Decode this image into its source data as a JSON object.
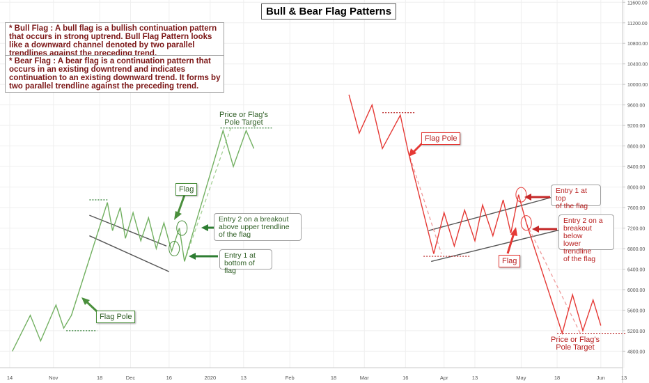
{
  "colors": {
    "bull": "#4a8f3c",
    "bull_line": "#72b061",
    "bear": "#e53935",
    "bear_dark": "#b71c1c",
    "note_text": "#7b1616",
    "channel": "#555555",
    "grid": "#efefef",
    "axis_text": "#555555"
  },
  "chart_data": {
    "type": "line",
    "title": "Bull & Bear Flag Patterns",
    "ylim": [
      4600,
      11600
    ],
    "y_ticks": [
      {
        "value": 4800,
        "label": "4800.00"
      },
      {
        "value": 5200,
        "label": "5200.00"
      },
      {
        "value": 5600,
        "label": "5600.00"
      },
      {
        "value": 6000,
        "label": "6000.00"
      },
      {
        "value": 6400,
        "label": "6400.00"
      },
      {
        "value": 6800,
        "label": "6800.00"
      },
      {
        "value": 7200,
        "label": "7200.00"
      },
      {
        "value": 7600,
        "label": "7600.00"
      },
      {
        "value": 8000,
        "label": "8000.00"
      },
      {
        "value": 8400,
        "label": "8400.00"
      },
      {
        "value": 8800,
        "label": "8800.00"
      },
      {
        "value": 9200,
        "label": "9200.00"
      },
      {
        "value": 9600,
        "label": "9600.00"
      },
      {
        "value": 10000,
        "label": "10000.00"
      },
      {
        "value": 10400,
        "label": "10400.00"
      },
      {
        "value": 10800,
        "label": "10800.00"
      },
      {
        "value": 11200,
        "label": "11200.00"
      },
      {
        "value": 11600,
        "label": "11600.00"
      }
    ],
    "x_ticks": [
      {
        "day": 14,
        "label": "14"
      },
      {
        "day": 31,
        "label": "Nov"
      },
      {
        "day": 49,
        "label": "18"
      },
      {
        "day": 61,
        "label": "Dec"
      },
      {
        "day": 76,
        "label": "16"
      },
      {
        "day": 92,
        "label": "2020"
      },
      {
        "day": 105,
        "label": "13"
      },
      {
        "day": 123,
        "label": "Feb"
      },
      {
        "day": 140,
        "label": "18"
      },
      {
        "day": 152,
        "label": "Mar"
      },
      {
        "day": 168,
        "label": "16"
      },
      {
        "day": 183,
        "label": "Apr"
      },
      {
        "day": 195,
        "label": "13"
      },
      {
        "day": 213,
        "label": "May"
      },
      {
        "day": 227,
        "label": "18"
      },
      {
        "day": 244,
        "label": "Jun"
      },
      {
        "day": 253,
        "label": "13"
      }
    ],
    "series": [
      {
        "points": [
          [
            15,
            4800
          ],
          [
            22,
            5500
          ],
          [
            26,
            5000
          ],
          [
            32,
            5700
          ],
          [
            35,
            5250
          ],
          [
            38,
            5500
          ],
          [
            52,
            7700
          ],
          [
            54,
            7150
          ],
          [
            57,
            7600
          ],
          [
            59,
            7000
          ],
          [
            62,
            7500
          ],
          [
            65,
            6950
          ],
          [
            68,
            7400
          ],
          [
            71,
            6800
          ],
          [
            74,
            7300
          ],
          [
            77,
            6750
          ],
          [
            80,
            7200
          ],
          [
            82,
            6550
          ],
          [
            97,
            9100
          ],
          [
            101,
            8400
          ],
          [
            106,
            9100
          ],
          [
            109,
            8750
          ]
        ]
      },
      {
        "points": [
          [
            146,
            9800
          ],
          [
            150,
            9050
          ],
          [
            155,
            9600
          ],
          [
            159,
            8750
          ],
          [
            166,
            9400
          ],
          [
            169,
            8700
          ],
          [
            179,
            6700
          ],
          [
            183,
            7500
          ],
          [
            187,
            6850
          ],
          [
            191,
            7550
          ],
          [
            195,
            6950
          ],
          [
            198,
            7650
          ],
          [
            202,
            7050
          ],
          [
            206,
            7750
          ],
          [
            209,
            7100
          ],
          [
            212,
            7850
          ],
          [
            215,
            7300
          ],
          [
            229,
            5150
          ],
          [
            233,
            5900
          ],
          [
            237,
            5200
          ],
          [
            241,
            5800
          ],
          [
            244,
            5300
          ]
        ]
      }
    ],
    "reference_lines": [
      {
        "kind": "channel",
        "points": [
          [
            45,
            7450
          ],
          [
            75,
            6850
          ]
        ]
      },
      {
        "kind": "channel",
        "points": [
          [
            45,
            7050
          ],
          [
            76,
            6350
          ]
        ]
      },
      {
        "kind": "channel",
        "points": [
          [
            177,
            7150
          ],
          [
            236,
            7950
          ]
        ]
      },
      {
        "kind": "channel",
        "points": [
          [
            178,
            6550
          ],
          [
            239,
            7300
          ]
        ]
      },
      {
        "kind": "target",
        "points": [
          [
            45,
            7750
          ],
          [
            52,
            7750
          ]
        ]
      },
      {
        "kind": "target",
        "points": [
          [
            36,
            5200
          ],
          [
            48,
            5200
          ]
        ]
      },
      {
        "kind": "target",
        "points": [
          [
            96,
            9150
          ],
          [
            116,
            9150
          ]
        ]
      },
      {
        "kind": "target",
        "points": [
          [
            159,
            9450
          ],
          [
            172,
            9450
          ]
        ]
      },
      {
        "kind": "target",
        "points": [
          [
            175,
            6650
          ],
          [
            193,
            6650
          ]
        ]
      },
      {
        "kind": "target",
        "points": [
          [
            227,
            5150
          ],
          [
            254,
            5150
          ]
        ]
      },
      {
        "kind": "projection",
        "points": [
          [
            38,
            5500
          ],
          [
            52,
            7700
          ]
        ]
      },
      {
        "kind": "projection",
        "points": [
          [
            82,
            6550
          ],
          [
            100,
            9150
          ]
        ]
      },
      {
        "kind": "projection",
        "points": [
          [
            169,
            8700
          ],
          [
            182,
            6700
          ]
        ]
      },
      {
        "kind": "projection",
        "points": [
          [
            215,
            7300
          ],
          [
            236,
            5150
          ]
        ]
      }
    ],
    "markers": [
      {
        "day": 81,
        "value": 7200,
        "kind": "entry"
      },
      {
        "day": 78,
        "value": 6800,
        "kind": "entry"
      },
      {
        "day": 213,
        "value": 7850,
        "kind": "entry"
      },
      {
        "day": 215,
        "value": 7300,
        "kind": "entry"
      }
    ]
  },
  "notes": {
    "bull": "* Bull Flag : A bull flag is a bullish continuation pattern that occurs in strong uptrend. Bull Flag Pattern looks like a downward channel denoted by two parallel trendlines against the preceding trend.",
    "bear": "* Bear Flag : A bear flag is a continuation pattern that occurs in an existing downtrend and indicates continuation to an existing downward trend. It forms by two parallel trendline against the preceding trend."
  },
  "labels": {
    "bull_flag": "Flag",
    "bull_pole": "Flag Pole",
    "bull_target_l1": "Price or Flag's",
    "bull_target_l2": "Pole Target",
    "bull_entry2_l1": "Entry 2 on a breakout",
    "bull_entry2_l2": "above upper trendline",
    "bull_entry2_l3": "of the flag",
    "bull_entry1_l1": "Entry 1 at",
    "bull_entry1_l2": "bottom of flag",
    "bear_pole": "Flag Pole",
    "bear_flag": "Flag",
    "bear_entry1_l1": "Entry 1 at top",
    "bear_entry1_l2": "of the flag",
    "bear_entry2_l1": "Entry 2 on a",
    "bear_entry2_l2": "breakout below",
    "bear_entry2_l3": "lower trendline",
    "bear_entry2_l4": "of the flag",
    "bear_target_l1": "Price or Flag's",
    "bear_target_l2": "Pole Target"
  }
}
